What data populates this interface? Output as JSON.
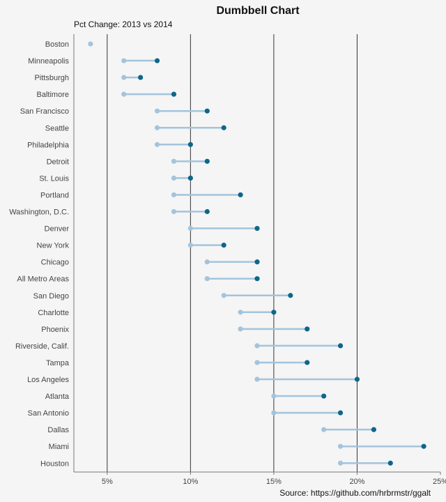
{
  "chart_data": {
    "type": "dumbbell",
    "title": "Dumbbell Chart",
    "subtitle": "Pct Change: 2013 vs 2014",
    "caption": "Source: https://github.com/hrbrmstr/ggalt",
    "xlim": [
      3,
      25
    ],
    "x_ticks": [
      5,
      10,
      15,
      20,
      25
    ],
    "x_tick_labels": [
      "5%",
      "10%",
      "15%",
      "20%",
      "25%"
    ],
    "categories": [
      "Boston",
      "Minneapolis",
      "Pittsburgh",
      "Baltimore",
      "San Francisco",
      "Seattle",
      "Philadelphia",
      "Detroit",
      "St. Louis",
      "Portland",
      "Washington, D.C.",
      "Denver",
      "New York",
      "Chicago",
      "All Metro Areas",
      "San Diego",
      "Charlotte",
      "Phoenix",
      "Riverside, Calif.",
      "Tampa",
      "Los Angeles",
      "Atlanta",
      "San Antonio",
      "Dallas",
      "Miami",
      "Houston"
    ],
    "series": [
      {
        "values": [
          4,
          6,
          6,
          6,
          8,
          8,
          8,
          9,
          9,
          9,
          9,
          10,
          10,
          11,
          11,
          12,
          13,
          13,
          14,
          14,
          14,
          15,
          15,
          18,
          19,
          19
        ]
      },
      {
        "values": [
          4,
          8,
          7,
          9,
          11,
          12,
          10,
          11,
          10,
          13,
          11,
          14,
          12,
          14,
          14,
          16,
          15,
          17,
          19,
          17,
          20,
          18,
          19,
          21,
          24,
          22
        ]
      }
    ],
    "colors": {
      "start": "#a3c4dc",
      "end": "#0e668b",
      "segment": "#a3c4dc",
      "gridline": "#333333",
      "background": "#f5f5f5"
    }
  }
}
